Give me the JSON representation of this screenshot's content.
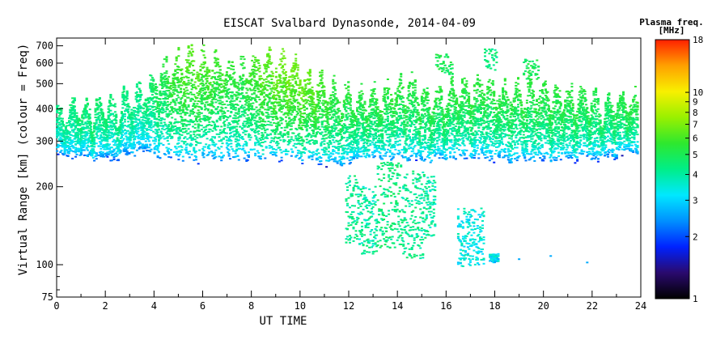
{
  "chart_data": {
    "type": "scatter",
    "title": "EISCAT Svalbard Dynasonde, 2014-04-09",
    "xlabel": "UT TIME",
    "ylabel": "Virtual Range [km] (colour = Freq)",
    "x_range": [
      0,
      24
    ],
    "y_range": [
      75,
      750
    ],
    "y_scale": "log",
    "x_ticks": [
      "0",
      "2",
      "4",
      "6",
      "8",
      "10",
      "12",
      "14",
      "16",
      "18",
      "20",
      "22",
      "24"
    ],
    "y_ticks": [
      "75",
      "100",
      "200",
      "300",
      "400",
      "500",
      "600",
      "700"
    ],
    "colorbar": {
      "title": "Plasma freq.",
      "unit": "[MHz]",
      "scale": "log",
      "range": [
        1,
        18
      ],
      "ticks": [
        "1",
        "2",
        "3",
        "4",
        "5",
        "6",
        "7",
        "8",
        "9",
        "10",
        "18"
      ],
      "colors": [
        "#000000",
        "#2a0a6e",
        "#0022ff",
        "#0090ff",
        "#00e8ff",
        "#00ee88",
        "#2ee82e",
        "#99f000",
        "#f8f000",
        "#ffa000",
        "#ff2000"
      ]
    },
    "series": [
      {
        "description_of_content": "F-region echoes",
        "x": [
          0.5,
          1.5,
          2.5,
          3.5,
          4.5,
          5.5,
          6.5,
          7.5,
          8.5,
          9.5,
          10.5,
          11.5,
          12.5,
          13.5,
          14.5,
          15.5,
          16.5,
          17.5,
          18.5,
          19.5,
          20.5,
          21.5,
          22.5,
          23.5
        ],
        "y_bottom": [
          260,
          255,
          255,
          270,
          255,
          250,
          255,
          250,
          255,
          255,
          250,
          240,
          250,
          255,
          250,
          250,
          255,
          255,
          250,
          250,
          250,
          255,
          255,
          270
        ],
        "y_top": [
          380,
          400,
          410,
          450,
          560,
          620,
          600,
          560,
          620,
          600,
          500,
          450,
          430,
          450,
          480,
          430,
          470,
          480,
          450,
          470,
          450,
          450,
          400,
          420
        ],
        "freq_peak": [
          4.5,
          4.8,
          4.6,
          4.5,
          5.5,
          6.5,
          6.0,
          5.5,
          6.5,
          7.0,
          6.5,
          5.5,
          5.5,
          5.5,
          5.5,
          5.5,
          5.5,
          5.5,
          5.5,
          5.5,
          5.5,
          5.5,
          5.0,
          5.5
        ]
      }
    ]
  }
}
